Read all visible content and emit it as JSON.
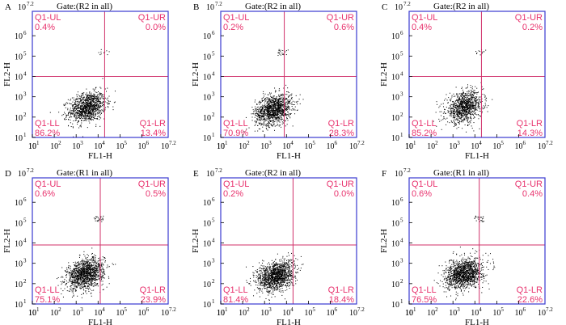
{
  "chart_data": [
    {
      "type": "scatter",
      "panel_label": "A",
      "title": "Gate:(R2 in all)",
      "xlabel": "FL1-H",
      "ylabel": "FL2-H",
      "x_ticks": [
        "10",
        "10",
        "10",
        "10",
        "10",
        "10",
        "10"
      ],
      "x_tick_exponents": [
        "",
        "1",
        "2",
        "3",
        "4",
        "5",
        "6"
      ],
      "x_max_label": "10",
      "x_max_exp": "7.2",
      "y_ticks": [
        "10",
        "10",
        "10",
        "10",
        "10",
        "10"
      ],
      "y_tick_exponents": [
        "1",
        "2",
        "3",
        "4",
        "5",
        "6"
      ],
      "y_max_label": "10",
      "y_max_exp": "7.2",
      "quadrant_divider": {
        "x_log": 4.3,
        "y_log": 4.0
      },
      "quadrants": {
        "UL": {
          "name": "Q1-UL",
          "value": "0.4%"
        },
        "UR": {
          "name": "Q1-UR",
          "value": "0.0%"
        },
        "LL": {
          "name": "Q1-LL",
          "value": "86.2%"
        },
        "LR": {
          "name": "Q1-LR",
          "value": "13.4%"
        }
      },
      "cluster": {
        "center_x_log": 3.5,
        "center_y_log": 2.5,
        "count": 1100,
        "upper_cluster_count": 10
      }
    },
    {
      "type": "scatter",
      "panel_label": "B",
      "title": "Gate:(R2 in all)",
      "xlabel": "FL1-H",
      "ylabel": "FL2-H",
      "x_ticks": [
        "10",
        "10",
        "10",
        "10",
        "10",
        "10",
        "10"
      ],
      "x_tick_exponents": [
        "",
        "1",
        "2",
        "3",
        "4",
        "5",
        "6"
      ],
      "x_max_label": "10",
      "x_max_exp": "7.2",
      "y_ticks": [
        "10",
        "10",
        "10",
        "10",
        "10",
        "10"
      ],
      "y_tick_exponents": [
        "1",
        "2",
        "3",
        "4",
        "5",
        "6"
      ],
      "y_max_label": "10",
      "y_max_exp": "7.2",
      "quadrant_divider": {
        "x_log": 3.9,
        "y_log": 4.0
      },
      "quadrants": {
        "UL": {
          "name": "Q1-UL",
          "value": "0.2%"
        },
        "UR": {
          "name": "Q1-UR",
          "value": "0.6%"
        },
        "LL": {
          "name": "Q1-LL",
          "value": "70.9%"
        },
        "LR": {
          "name": "Q1-LR",
          "value": "28.3%"
        }
      },
      "cluster": {
        "center_x_log": 3.4,
        "center_y_log": 2.4,
        "count": 1200,
        "upper_cluster_count": 22
      }
    },
    {
      "type": "scatter",
      "panel_label": "C",
      "title": "Gate:(R2 in all)",
      "xlabel": "FL1-H",
      "ylabel": "FL2-H",
      "x_ticks": [
        "10",
        "10",
        "10",
        "10",
        "10",
        "10",
        "10"
      ],
      "x_tick_exponents": [
        "",
        "1",
        "2",
        "3",
        "4",
        "5",
        "6"
      ],
      "x_max_label": "10",
      "x_max_exp": "7.2",
      "y_ticks": [
        "10",
        "10",
        "10",
        "10",
        "10",
        "10"
      ],
      "y_tick_exponents": [
        "1",
        "2",
        "3",
        "4",
        "5",
        "6"
      ],
      "y_max_label": "10",
      "y_max_exp": "7.2",
      "quadrant_divider": {
        "x_log": 4.3,
        "y_log": 4.0
      },
      "quadrants": {
        "UL": {
          "name": "Q1-UL",
          "value": "0.4%"
        },
        "UR": {
          "name": "Q1-UR",
          "value": "0.2%"
        },
        "LL": {
          "name": "Q1-LL",
          "value": "85.2%"
        },
        "LR": {
          "name": "Q1-LR",
          "value": "14.3%"
        }
      },
      "cluster": {
        "center_x_log": 3.5,
        "center_y_log": 2.5,
        "count": 1000,
        "upper_cluster_count": 12
      }
    },
    {
      "type": "scatter",
      "panel_label": "D",
      "title": "Gate:(R1 in all)",
      "xlabel": "FL1-H",
      "ylabel": "FL2-H",
      "x_ticks": [
        "10",
        "10",
        "10",
        "10",
        "10",
        "10",
        "10"
      ],
      "x_tick_exponents": [
        "",
        "1",
        "2",
        "3",
        "4",
        "5",
        "6"
      ],
      "x_max_label": "10",
      "x_max_exp": "7.2",
      "y_ticks": [
        "10",
        "10",
        "10",
        "10",
        "10",
        "10"
      ],
      "y_tick_exponents": [
        "1",
        "2",
        "3",
        "4",
        "5",
        "6"
      ],
      "y_max_label": "10",
      "y_max_exp": "7.2",
      "quadrant_divider": {
        "x_log": 4.1,
        "y_log": 3.9
      },
      "quadrants": {
        "UL": {
          "name": "Q1-UL",
          "value": "0.6%"
        },
        "UR": {
          "name": "Q1-UR",
          "value": "0.5%"
        },
        "LL": {
          "name": "Q1-LL",
          "value": "75.1%"
        },
        "LR": {
          "name": "Q1-LR",
          "value": "23.9%"
        }
      },
      "cluster": {
        "center_x_log": 3.4,
        "center_y_log": 2.5,
        "count": 1300,
        "upper_cluster_count": 24
      }
    },
    {
      "type": "scatter",
      "panel_label": "E",
      "title": "Gate:(R2 in all)",
      "xlabel": "FL1-H",
      "ylabel": "FL2-H",
      "x_ticks": [
        "10",
        "10",
        "10",
        "10",
        "10",
        "10",
        "10"
      ],
      "x_tick_exponents": [
        "",
        "1",
        "2",
        "3",
        "4",
        "5",
        "6"
      ],
      "x_max_label": "10",
      "x_max_exp": "7.2",
      "y_ticks": [
        "10",
        "10",
        "10",
        "10",
        "10",
        "10"
      ],
      "y_tick_exponents": [
        "1",
        "2",
        "3",
        "4",
        "5",
        "6"
      ],
      "y_max_label": "10",
      "y_max_exp": "7.2",
      "quadrant_divider": {
        "x_log": 4.3,
        "y_log": 3.9
      },
      "quadrants": {
        "UL": {
          "name": "Q1-UL",
          "value": "0.2%"
        },
        "UR": {
          "name": "Q1-UR",
          "value": "0.0%"
        },
        "LL": {
          "name": "Q1-LL",
          "value": "81.4%"
        },
        "LR": {
          "name": "Q1-LR",
          "value": "18.4%"
        }
      },
      "cluster": {
        "center_x_log": 3.5,
        "center_y_log": 2.4,
        "count": 1300,
        "upper_cluster_count": 0
      }
    },
    {
      "type": "scatter",
      "panel_label": "F",
      "title": "Gate:(R1 in all)",
      "xlabel": "FL1-H",
      "ylabel": "FL2-H",
      "x_ticks": [
        "10",
        "10",
        "10",
        "10",
        "10",
        "10",
        "10"
      ],
      "x_tick_exponents": [
        "",
        "1",
        "2",
        "3",
        "4",
        "5",
        "6"
      ],
      "x_max_label": "10",
      "x_max_exp": "7.2",
      "y_ticks": [
        "10",
        "10",
        "10",
        "10",
        "10",
        "10"
      ],
      "y_tick_exponents": [
        "1",
        "2",
        "3",
        "4",
        "5",
        "6"
      ],
      "y_max_label": "10",
      "y_max_exp": "7.2",
      "quadrant_divider": {
        "x_log": 4.2,
        "y_log": 3.9
      },
      "quadrants": {
        "UL": {
          "name": "Q1-UL",
          "value": "0.6%"
        },
        "UR": {
          "name": "Q1-UR",
          "value": "0.4%"
        },
        "LL": {
          "name": "Q1-LL",
          "value": "76.5%"
        },
        "LR": {
          "name": "Q1-LR",
          "value": "22.6%"
        }
      },
      "cluster": {
        "center_x_log": 3.5,
        "center_y_log": 2.5,
        "count": 1300,
        "upper_cluster_count": 22
      }
    }
  ],
  "colors": {
    "frame": "#3a3ad0",
    "divider": "#d0306a",
    "quadrant_text": "#e8336e",
    "dots": "#000000"
  }
}
